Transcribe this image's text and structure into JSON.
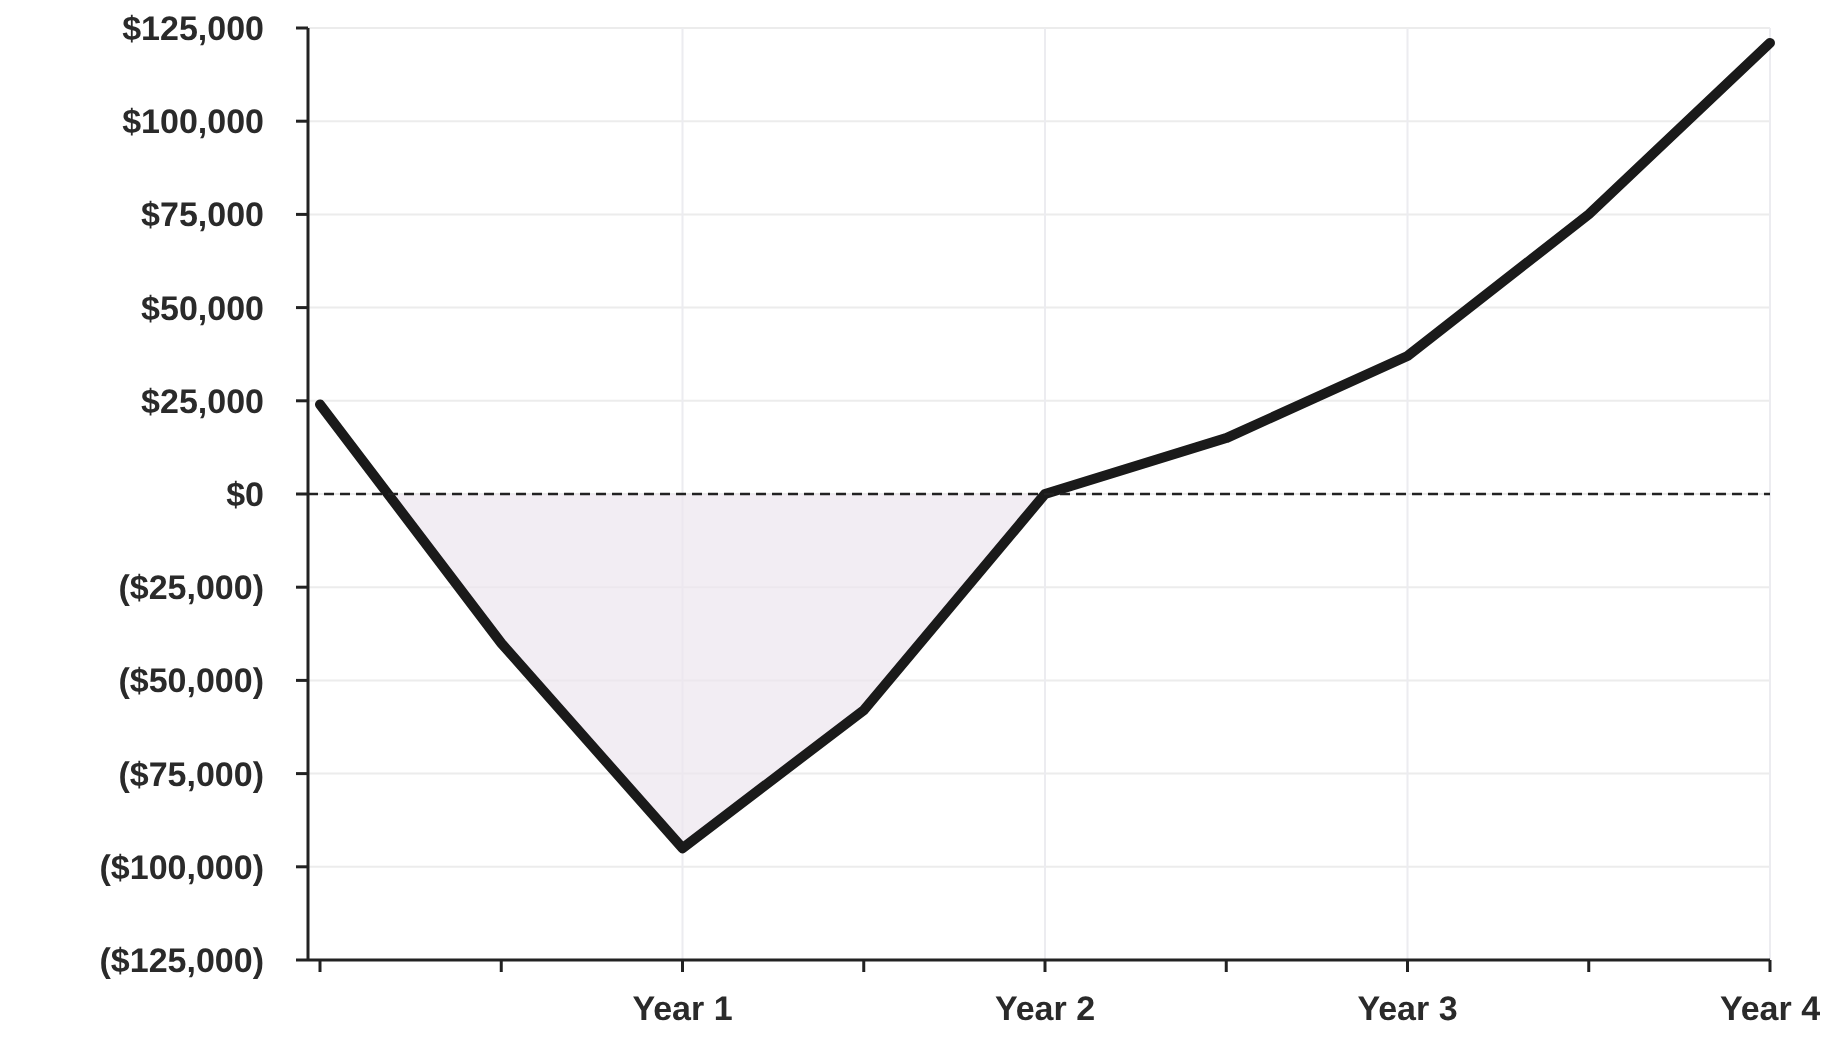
{
  "chart_data": {
    "type": "area",
    "categories": [
      null,
      null,
      "Year 1",
      null,
      "Year 2",
      null,
      "Year 3",
      null,
      "Year 4"
    ],
    "series": [
      {
        "color": "#1a1a1a",
        "values": [
          24000,
          -40000,
          -95000,
          -58000,
          0,
          15000,
          37000,
          75000,
          121000
        ]
      }
    ],
    "ylim": [
      -125000,
      125000
    ],
    "yticks": [
      {
        "value": -125000,
        "label": "($125,000)"
      },
      {
        "value": -100000,
        "label": "($100,000)"
      },
      {
        "value": -75000,
        "label": "($75,000)"
      },
      {
        "value": -50000,
        "label": "($50,000)"
      },
      {
        "value": -25000,
        "label": "($25,000)"
      },
      {
        "value": 0,
        "label": "$0"
      },
      {
        "value": 25000,
        "label": "$25,000"
      },
      {
        "value": 50000,
        "label": "$50,000"
      },
      {
        "value": 75000,
        "label": "$75,000"
      },
      {
        "value": 100000,
        "label": "$100,000"
      },
      {
        "value": 125000,
        "label": "$125,000"
      }
    ],
    "grid": true,
    "ref_lines": [
      {
        "axis": "y",
        "value": 0,
        "line_style": "dashed",
        "color": "#222222"
      }
    ]
  }
}
